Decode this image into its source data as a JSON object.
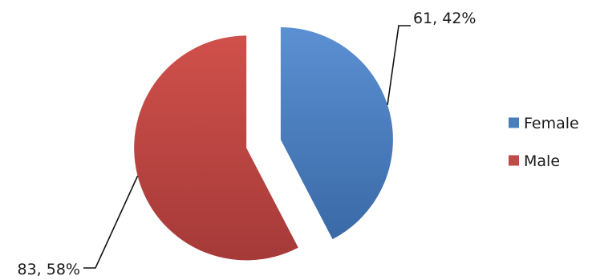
{
  "chart_data": {
    "type": "pie",
    "exploded": true,
    "categories": [
      "Female",
      "Male"
    ],
    "values": [
      61,
      83
    ],
    "percentages": [
      "42%",
      "58%"
    ],
    "data_labels": [
      "61, 42%",
      "83, 58%"
    ],
    "colors": [
      "#4A7EBB",
      "#BE4B48"
    ],
    "legend": {
      "position": "right",
      "entries": [
        "Female",
        "Male"
      ]
    },
    "title": ""
  }
}
